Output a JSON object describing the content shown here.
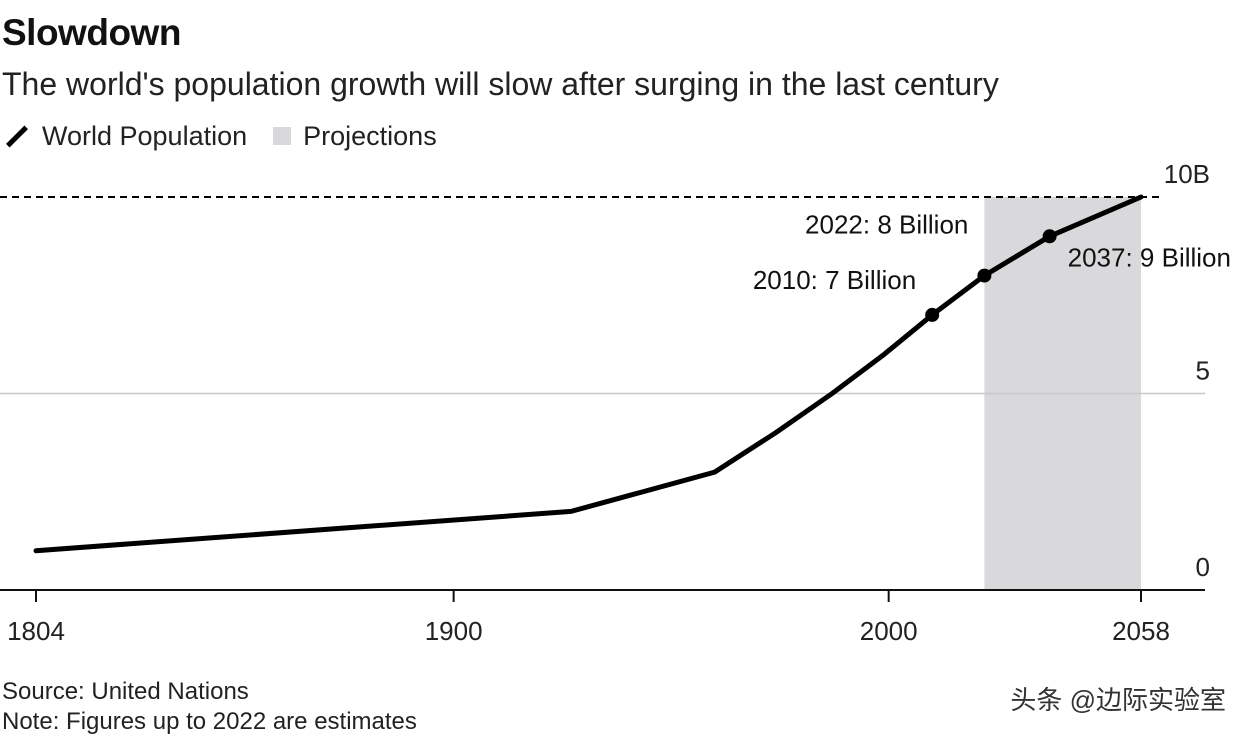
{
  "chart_data": {
    "type": "line",
    "title": "Slowdown",
    "subtitle": "The world's population growth will slow after surging in the last century",
    "legend": [
      "World Population",
      "Projections"
    ],
    "series": [
      {
        "name": "World Population",
        "x": [
          1804,
          1927,
          1960,
          1974,
          1987,
          1999,
          2010,
          2022,
          2037,
          2058
        ],
        "y": [
          1,
          2,
          3,
          4,
          5,
          6,
          7,
          8,
          9,
          10
        ]
      }
    ],
    "annotations": [
      {
        "x": 2010,
        "y": 7,
        "label": "2010: 7 Billion"
      },
      {
        "x": 2022,
        "y": 8,
        "label": "2022: 8 Billion"
      },
      {
        "x": 2037,
        "y": 9,
        "label": "2037: 9 Billion"
      }
    ],
    "projection_range": [
      2022,
      2058
    ],
    "x_ticks": [
      "1804",
      "1900",
      "2000",
      "2058"
    ],
    "y_ticks": [
      "0",
      "5",
      "10B"
    ],
    "xlim": [
      1804,
      2058
    ],
    "ylim": [
      0,
      10
    ],
    "grid": "horizontal",
    "colors": {
      "line": "#000000",
      "projection": "#d9d9db",
      "grid": "#c8c8c8"
    }
  },
  "footer": {
    "source": "Source: United Nations",
    "note": "Note: Figures up to 2022 are estimates"
  },
  "watermark": "头条 @边际实验室"
}
